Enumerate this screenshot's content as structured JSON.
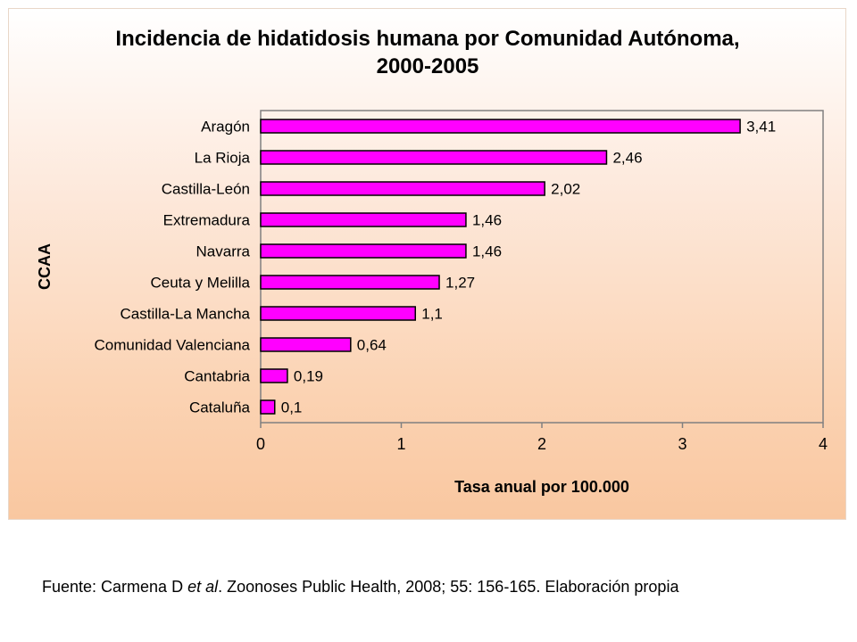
{
  "chart_data": {
    "type": "bar",
    "orientation": "horizontal",
    "title": "Incidencia de hidatidosis humana por Comunidad Autónoma,",
    "subtitle": "2000-2005",
    "xlabel": "Tasa anual por 100.000",
    "ylabel": "CCAA",
    "categories": [
      "Aragón",
      "La Rioja",
      "Castilla-León",
      "Extremadura",
      "Navarra",
      "Ceuta y Melilla",
      "Castilla-La Mancha",
      "Comunidad Valenciana",
      "Cantabria",
      "Cataluña"
    ],
    "values": [
      3.41,
      2.46,
      2.02,
      1.46,
      1.46,
      1.27,
      1.1,
      0.64,
      0.19,
      0.1
    ],
    "data_labels": [
      "3,41",
      "2,46",
      "2,02",
      "1,46",
      "1,46",
      "1,27",
      "1,1",
      "0,64",
      "0,19",
      "0,1"
    ],
    "xlim": [
      0,
      4
    ],
    "xticks": [
      0,
      1,
      2,
      3,
      4
    ],
    "xtick_labels": [
      "0",
      "1",
      "2",
      "3",
      "4"
    ],
    "grid": false,
    "legend": "none",
    "bar_color": "#ff00ff",
    "bar_edge_color": "#000000"
  },
  "source_note": {
    "prefix": "Fuente: Carmena D ",
    "italic": "et al",
    "suffix": ". Zoonoses Public Health, 2008; 55: 156-165. Elaboración propia"
  }
}
